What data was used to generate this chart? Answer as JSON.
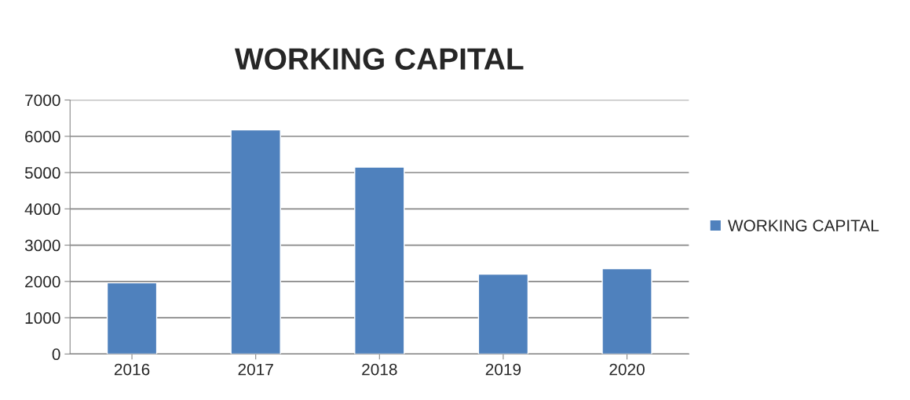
{
  "chart_data": {
    "type": "bar",
    "title": "WORKING CAPITAL",
    "categories": [
      "2016",
      "2017",
      "2018",
      "2019",
      "2020"
    ],
    "series": [
      {
        "name": "WORKING CAPITAL",
        "color": "#4f81bd",
        "values": [
          1960,
          6180,
          5150,
          2200,
          2350
        ]
      }
    ],
    "ylim": [
      0,
      7000
    ],
    "yticks": [
      0,
      1000,
      2000,
      3000,
      4000,
      5000,
      6000,
      7000
    ],
    "grid": "y",
    "legend": "right"
  }
}
